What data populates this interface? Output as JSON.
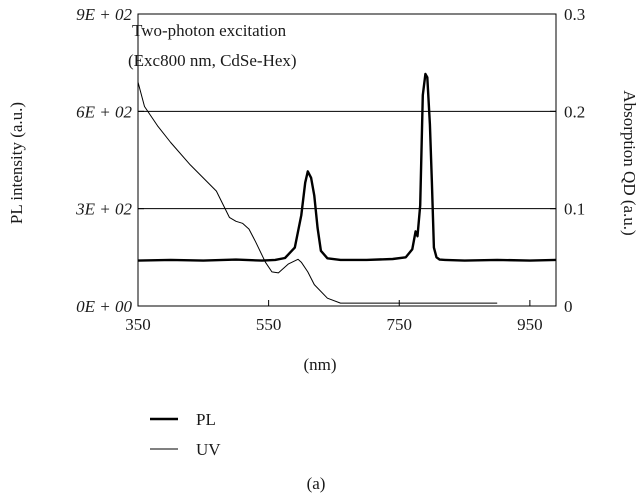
{
  "chart_data": {
    "type": "line",
    "title": "",
    "annotation_lines": [
      "Two-photon excitation",
      "(Exc800 nm, CdSe-Hex)"
    ],
    "xlabel": "(nm)",
    "ylabel_left": "PL intensity (a.u.)",
    "ylabel_right": "Absorption QD (a.u.)",
    "caption": "(a)",
    "xlim": [
      350,
      990
    ],
    "ylim_left": [
      0,
      900
    ],
    "ylim_right": [
      0,
      0.3
    ],
    "x_ticks": [
      350,
      550,
      750,
      950
    ],
    "x_tick_labels": [
      "350",
      "550",
      "750",
      "950"
    ],
    "y_left_ticks": [
      0,
      300,
      600,
      900
    ],
    "y_left_tick_labels": [
      "0E + 00",
      "3E + 02",
      "6E + 02",
      "9E + 02"
    ],
    "y_right_ticks": [
      0,
      0.1,
      0.2,
      0.3
    ],
    "y_right_tick_labels": [
      "0",
      "0.1",
      "0.2",
      "0.3"
    ],
    "grid": "horizontal",
    "legend_position": "below-left",
    "series": [
      {
        "name": "PL",
        "axis": "left",
        "color": "#000000",
        "style": "thick",
        "x": [
          350,
          400,
          450,
          500,
          540,
          560,
          575,
          590,
          600,
          606,
          610,
          615,
          620,
          625,
          630,
          640,
          660,
          700,
          740,
          760,
          770,
          775,
          778,
          782,
          786,
          790,
          793,
          797,
          800,
          803,
          807,
          812,
          820,
          850,
          900,
          950,
          990
        ],
        "y": [
          140,
          142,
          140,
          143,
          140,
          142,
          148,
          180,
          280,
          380,
          415,
          395,
          340,
          240,
          170,
          147,
          142,
          142,
          145,
          150,
          175,
          230,
          215,
          310,
          650,
          715,
          705,
          560,
          380,
          180,
          150,
          143,
          142,
          140,
          142,
          140,
          142
        ]
      },
      {
        "name": "UV",
        "axis": "right",
        "color": "#000000",
        "style": "thin",
        "x": [
          350,
          360,
          380,
          400,
          430,
          470,
          490,
          500,
          510,
          520,
          530,
          545,
          555,
          565,
          580,
          595,
          600,
          610,
          620,
          640,
          660,
          700,
          800,
          900
        ],
        "y": [
          0.23,
          0.205,
          0.185,
          0.168,
          0.145,
          0.118,
          0.091,
          0.087,
          0.085,
          0.079,
          0.066,
          0.045,
          0.035,
          0.034,
          0.043,
          0.048,
          0.045,
          0.035,
          0.022,
          0.008,
          0.003,
          0.003,
          0.003,
          0.003
        ]
      }
    ]
  }
}
